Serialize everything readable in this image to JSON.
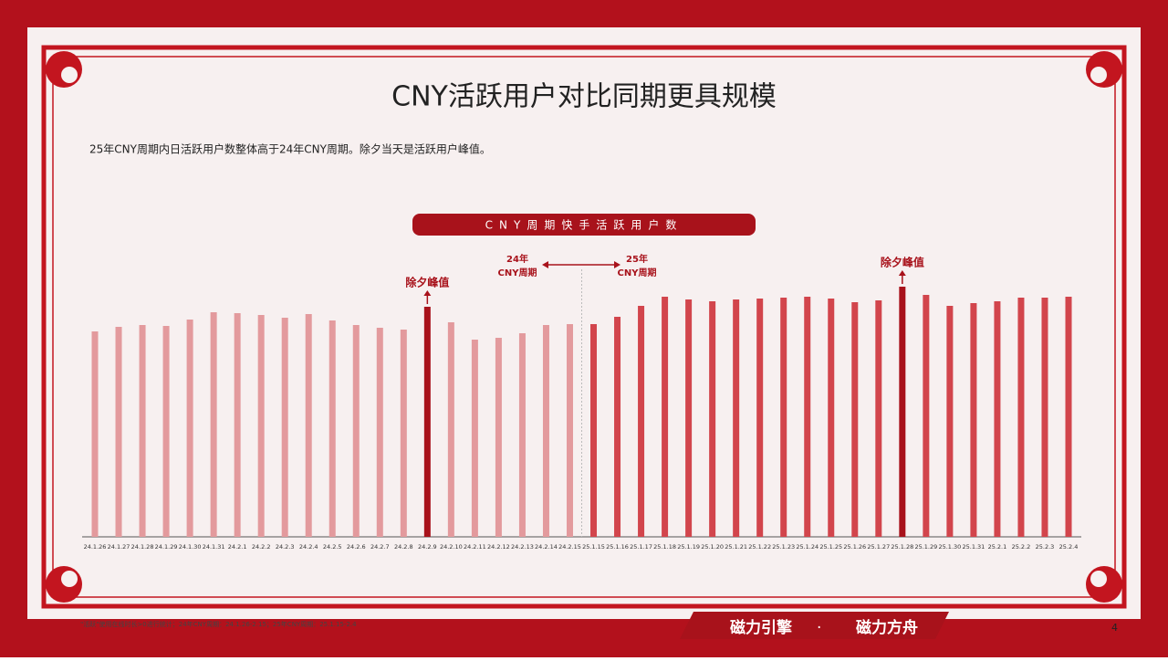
{
  "header": {
    "title": "CNY活跃用户对比同期更具规模",
    "subtitle": "25年CNY周期内日活跃用户数整体高于24年CNY周期。除夕当天是活跃用户峰值。"
  },
  "chart_data": {
    "type": "bar",
    "title": "CNY周期快手活跃用户数",
    "categories": [
      "24.1.26",
      "24.1.27",
      "24.1.28",
      "24.1.29",
      "24.1.30",
      "24.1.31",
      "24.2.1",
      "24.2.2",
      "24.2.3",
      "24.2.4",
      "24.2.5",
      "24.2.6",
      "24.2.7",
      "24.2.8",
      "24.2.9",
      "24.2.10",
      "24.2.11",
      "24.2.12",
      "24.2.13",
      "24.2.14",
      "24.2.15",
      "25.1.15",
      "25.1.16",
      "25.1.17",
      "25.1.18",
      "25.1.19",
      "25.1.20",
      "25.1.21",
      "25.1.22",
      "25.1.23",
      "25.1.24",
      "25.1.25",
      "25.1.26",
      "25.1.27",
      "25.1.28",
      "25.1.29",
      "25.1.30",
      "25.1.31",
      "25.2.1",
      "25.2.2",
      "25.2.3",
      "25.2.4"
    ],
    "values": [
      225,
      230,
      232,
      231,
      238,
      246,
      245,
      243,
      240,
      244,
      237,
      232,
      229,
      227,
      252,
      235,
      216,
      218,
      223,
      232,
      233,
      233,
      241,
      253,
      263,
      260,
      258,
      260,
      261,
      262,
      263,
      261,
      257,
      259,
      274,
      265,
      253,
      256,
      258,
      262,
      262,
      263
    ],
    "colors": [
      "#e39a9d",
      "#e39a9d",
      "#e39a9d",
      "#e39a9d",
      "#e39a9d",
      "#e39a9d",
      "#e39a9d",
      "#e39a9d",
      "#e39a9d",
      "#e39a9d",
      "#e39a9d",
      "#e39a9d",
      "#e39a9d",
      "#e39a9d",
      "#a8121b",
      "#e39a9d",
      "#e39a9d",
      "#e39a9d",
      "#e39a9d",
      "#e39a9d",
      "#e39a9d",
      "#d2454c",
      "#d2454c",
      "#d2454c",
      "#d2454c",
      "#d2454c",
      "#d2454c",
      "#d2454c",
      "#d2454c",
      "#d2454c",
      "#d2454c",
      "#d2454c",
      "#d2454c",
      "#d2454c",
      "#a8121b",
      "#d2454c",
      "#d2454c",
      "#d2454c",
      "#d2454c",
      "#d2454c",
      "#d2454c",
      "#d2454c"
    ],
    "ylim": [
      0,
      300
    ],
    "annotations": {
      "peak_24": "除夕峰值",
      "peak_25": "除夕峰值",
      "period_24": [
        "24年",
        "CNY周期"
      ],
      "period_25": [
        "25年",
        "CNY周期"
      ]
    }
  },
  "footer": {
    "note": "\"活跃\"使用在线时长>0进行统计；24年CNY周期：24.1.26-2.15；25年CNY周期：25.1.15-2.4",
    "logo_1": "磁力引擎",
    "separator": "·",
    "logo_2": "磁力方舟",
    "page": "4"
  }
}
